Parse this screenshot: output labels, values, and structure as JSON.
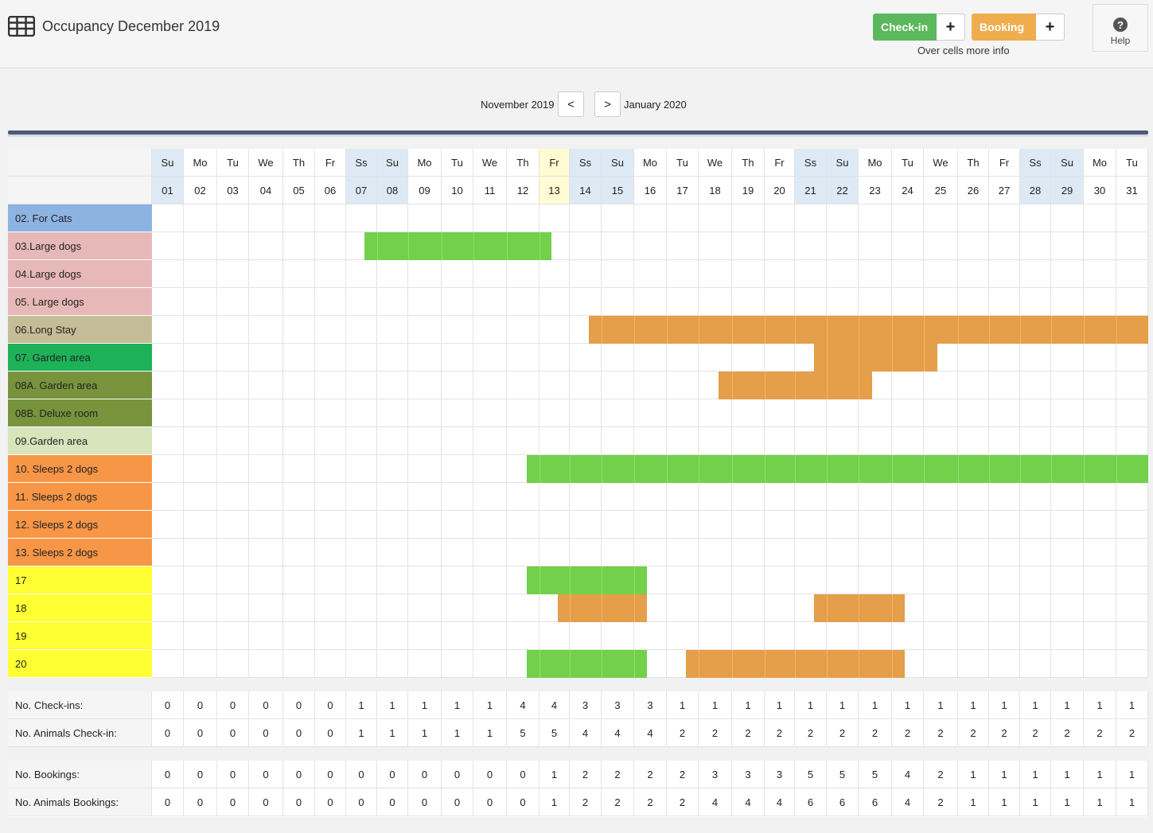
{
  "app": {
    "title": "Occupancy December 2019",
    "checkin_label": "Check-in",
    "booking_label": "Booking",
    "plus": "+",
    "hint": "Over cells more info",
    "help_label": "Help",
    "help_glyph": "?"
  },
  "nav": {
    "prev_month": "November 2019",
    "next_month": "January 2020",
    "prev_btn": "<",
    "next_btn": ">"
  },
  "colors": {
    "checkin": "#5cb85c",
    "booking": "#f0ad4e",
    "occupied": "#72d04b",
    "reserved": "#e59e49",
    "weekend": "#ddeaf5",
    "today": "#fffbd2"
  },
  "days": {
    "weekdays": [
      "Su",
      "Mo",
      "Tu",
      "We",
      "Th",
      "Fr",
      "Ss",
      "Su",
      "Mo",
      "Tu",
      "We",
      "Th",
      "Fr",
      "Ss",
      "Su",
      "Mo",
      "Tu",
      "We",
      "Th",
      "Fr",
      "Ss",
      "Su",
      "Mo",
      "Tu",
      "We",
      "Th",
      "Fr",
      "Ss",
      "Su",
      "Mo",
      "Tu"
    ],
    "numbers": [
      "01",
      "02",
      "03",
      "04",
      "05",
      "06",
      "07",
      "08",
      "09",
      "10",
      "11",
      "12",
      "13",
      "14",
      "15",
      "16",
      "17",
      "18",
      "19",
      "20",
      "21",
      "22",
      "23",
      "24",
      "25",
      "26",
      "27",
      "28",
      "29",
      "30",
      "31"
    ],
    "weekend_indices": [
      0,
      6,
      7,
      13,
      14,
      20,
      21,
      27,
      28
    ],
    "today_index": 12
  },
  "rooms": [
    {
      "name": "02. For Cats",
      "color": "#8db3e2"
    },
    {
      "name": "03.Large dogs",
      "color": "#e6b8b7"
    },
    {
      "name": "04.Large dogs",
      "color": "#e6b8b7"
    },
    {
      "name": "05. Large dogs",
      "color": "#e6b8b7"
    },
    {
      "name": "06.Long Stay",
      "color": "#c4bd97"
    },
    {
      "name": "07. Garden area",
      "color": "#1db158"
    },
    {
      "name": "08A. Garden area",
      "color": "#77933c"
    },
    {
      "name": "08B. Deluxe room",
      "color": "#77933c"
    },
    {
      "name": "09.Garden area",
      "color": "#d7e4bc"
    },
    {
      "name": "10. Sleeps 2 dogs",
      "color": "#f79646"
    },
    {
      "name": "11. Sleeps 2 dogs",
      "color": "#f79646"
    },
    {
      "name": "12. Sleeps 2 dogs",
      "color": "#f79646"
    },
    {
      "name": "13. Sleeps 2 dogs",
      "color": "#f79646"
    },
    {
      "name": "17",
      "color": "#ffff33"
    },
    {
      "name": "18",
      "color": "#ffff33"
    },
    {
      "name": "19",
      "color": "#ffff33"
    },
    {
      "name": "20",
      "color": "#ffff33"
    }
  ],
  "stays": [
    {
      "room": 1,
      "type": "checkin",
      "from_day": 6.6,
      "to_day": 12.4
    },
    {
      "room": 4,
      "type": "booking",
      "from_day": 13.6,
      "to_day": 31
    },
    {
      "room": 5,
      "type": "booking",
      "from_day": 20.6,
      "to_day": 24.4
    },
    {
      "room": 6,
      "type": "booking",
      "from_day": 17.6,
      "to_day": 22.4
    },
    {
      "room": 9,
      "type": "checkin",
      "from_day": 11.6,
      "to_day": 31
    },
    {
      "room": 13,
      "type": "checkin",
      "from_day": 11.6,
      "to_day": 15.4
    },
    {
      "room": 14,
      "type": "booking",
      "from_day": 12.6,
      "to_day": 15.4
    },
    {
      "room": 14,
      "type": "booking",
      "from_day": 20.6,
      "to_day": 23.4
    },
    {
      "room": 16,
      "type": "checkin",
      "from_day": 11.6,
      "to_day": 15.4
    },
    {
      "room": 16,
      "type": "booking",
      "from_day": 16.6,
      "to_day": 23.4
    }
  ],
  "stats": [
    {
      "label": "No. Check-ins:",
      "values": [
        0,
        0,
        0,
        0,
        0,
        0,
        1,
        1,
        1,
        1,
        1,
        4,
        4,
        3,
        3,
        3,
        1,
        1,
        1,
        1,
        1,
        1,
        1,
        1,
        1,
        1,
        1,
        1,
        1,
        1,
        1
      ]
    },
    {
      "label": "No. Animals Check-in:",
      "values": [
        0,
        0,
        0,
        0,
        0,
        0,
        1,
        1,
        1,
        1,
        1,
        5,
        5,
        4,
        4,
        4,
        2,
        2,
        2,
        2,
        2,
        2,
        2,
        2,
        2,
        2,
        2,
        2,
        2,
        2,
        2
      ]
    },
    {
      "label": "No. Bookings:",
      "values": [
        0,
        0,
        0,
        0,
        0,
        0,
        0,
        0,
        0,
        0,
        0,
        0,
        1,
        2,
        2,
        2,
        2,
        3,
        3,
        3,
        5,
        5,
        5,
        4,
        2,
        1,
        1,
        1,
        1,
        1,
        1
      ]
    },
    {
      "label": "No. Animals Bookings:",
      "values": [
        0,
        0,
        0,
        0,
        0,
        0,
        0,
        0,
        0,
        0,
        0,
        0,
        1,
        2,
        2,
        2,
        2,
        4,
        4,
        4,
        6,
        6,
        6,
        4,
        2,
        1,
        1,
        1,
        1,
        1,
        1
      ]
    }
  ]
}
